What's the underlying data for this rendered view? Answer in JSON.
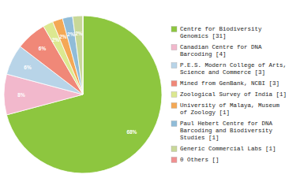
{
  "chart_data": {
    "type": "pie",
    "categories": [
      "Centre for Biodiversity\nGenomics [31]",
      "Canadian Centre for DNA\nBarcoding [4]",
      "P.E.S. Modern College of Arts,\nScience and Commerce [3]",
      "Mined from GenBank, NCBI [3]",
      "Zoological Survey of India [1]",
      "University of Malaya, Museum\nof Zoology [1]",
      "Paul Hebert Centre for DNA\nBarcoding and Biodiversity\nStudies [1]",
      "Generic Commercial Labs [1]",
      "0 Others []"
    ],
    "values": [
      68,
      8,
      6,
      6,
      2,
      2,
      2,
      2,
      0
    ],
    "value_labels": [
      "68%",
      "8%",
      "6%",
      "6%",
      "2%",
      "2%",
      "2%",
      "2%",
      null
    ],
    "colors": [
      "#8dc63f",
      "#f2b8cc",
      "#b8d4e8",
      "#f08878",
      "#dce890",
      "#f4a855",
      "#90bcd8",
      "#c8d898",
      "#f09090"
    ],
    "data_labels": true,
    "legend": "right"
  }
}
